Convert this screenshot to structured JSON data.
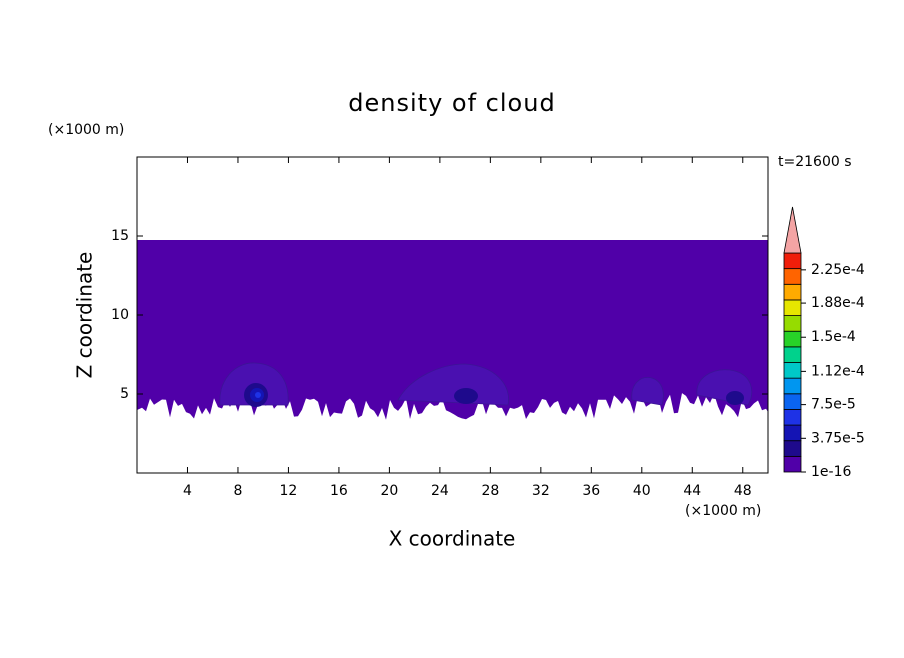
{
  "chart_data": {
    "type": "contour",
    "title": "density of cloud",
    "x_label": "X coordinate",
    "y_label": "Z coordinate",
    "x_unit": "(×1000 m)",
    "y_unit": "(×1000 m)",
    "time_label": "t=21600 s",
    "xlim": [
      0,
      50
    ],
    "xticks": [
      4,
      8,
      12,
      16,
      20,
      24,
      28,
      32,
      36,
      40,
      44,
      48
    ],
    "ylim": [
      0,
      20
    ],
    "yticks": [
      5,
      10,
      15
    ],
    "colorbar": {
      "clim": [
        1e-16,
        0.00024375
      ],
      "colors": [
        "#5000a8",
        "#1e0a8c",
        "#1414b4",
        "#1e32e6",
        "#0a64f0",
        "#0096f0",
        "#00c8c8",
        "#00d28c",
        "#28d228",
        "#96dc00",
        "#e6e600",
        "#ffaa00",
        "#ff6400",
        "#f01e0a"
      ],
      "extend_color": "#f4a4a4",
      "ticks": [
        {
          "value": 1e-16,
          "label": "1e-16"
        },
        {
          "value": 3.75e-05,
          "label": "3.75e-5"
        },
        {
          "value": 7.5e-05,
          "label": "7.5e-5"
        },
        {
          "value": 0.000112,
          "label": "1.12e-4"
        },
        {
          "value": 0.00015,
          "label": "1.5e-4"
        },
        {
          "value": 0.000188,
          "label": "1.88e-4"
        },
        {
          "value": 0.000225,
          "label": "2.25e-4"
        }
      ]
    }
  }
}
